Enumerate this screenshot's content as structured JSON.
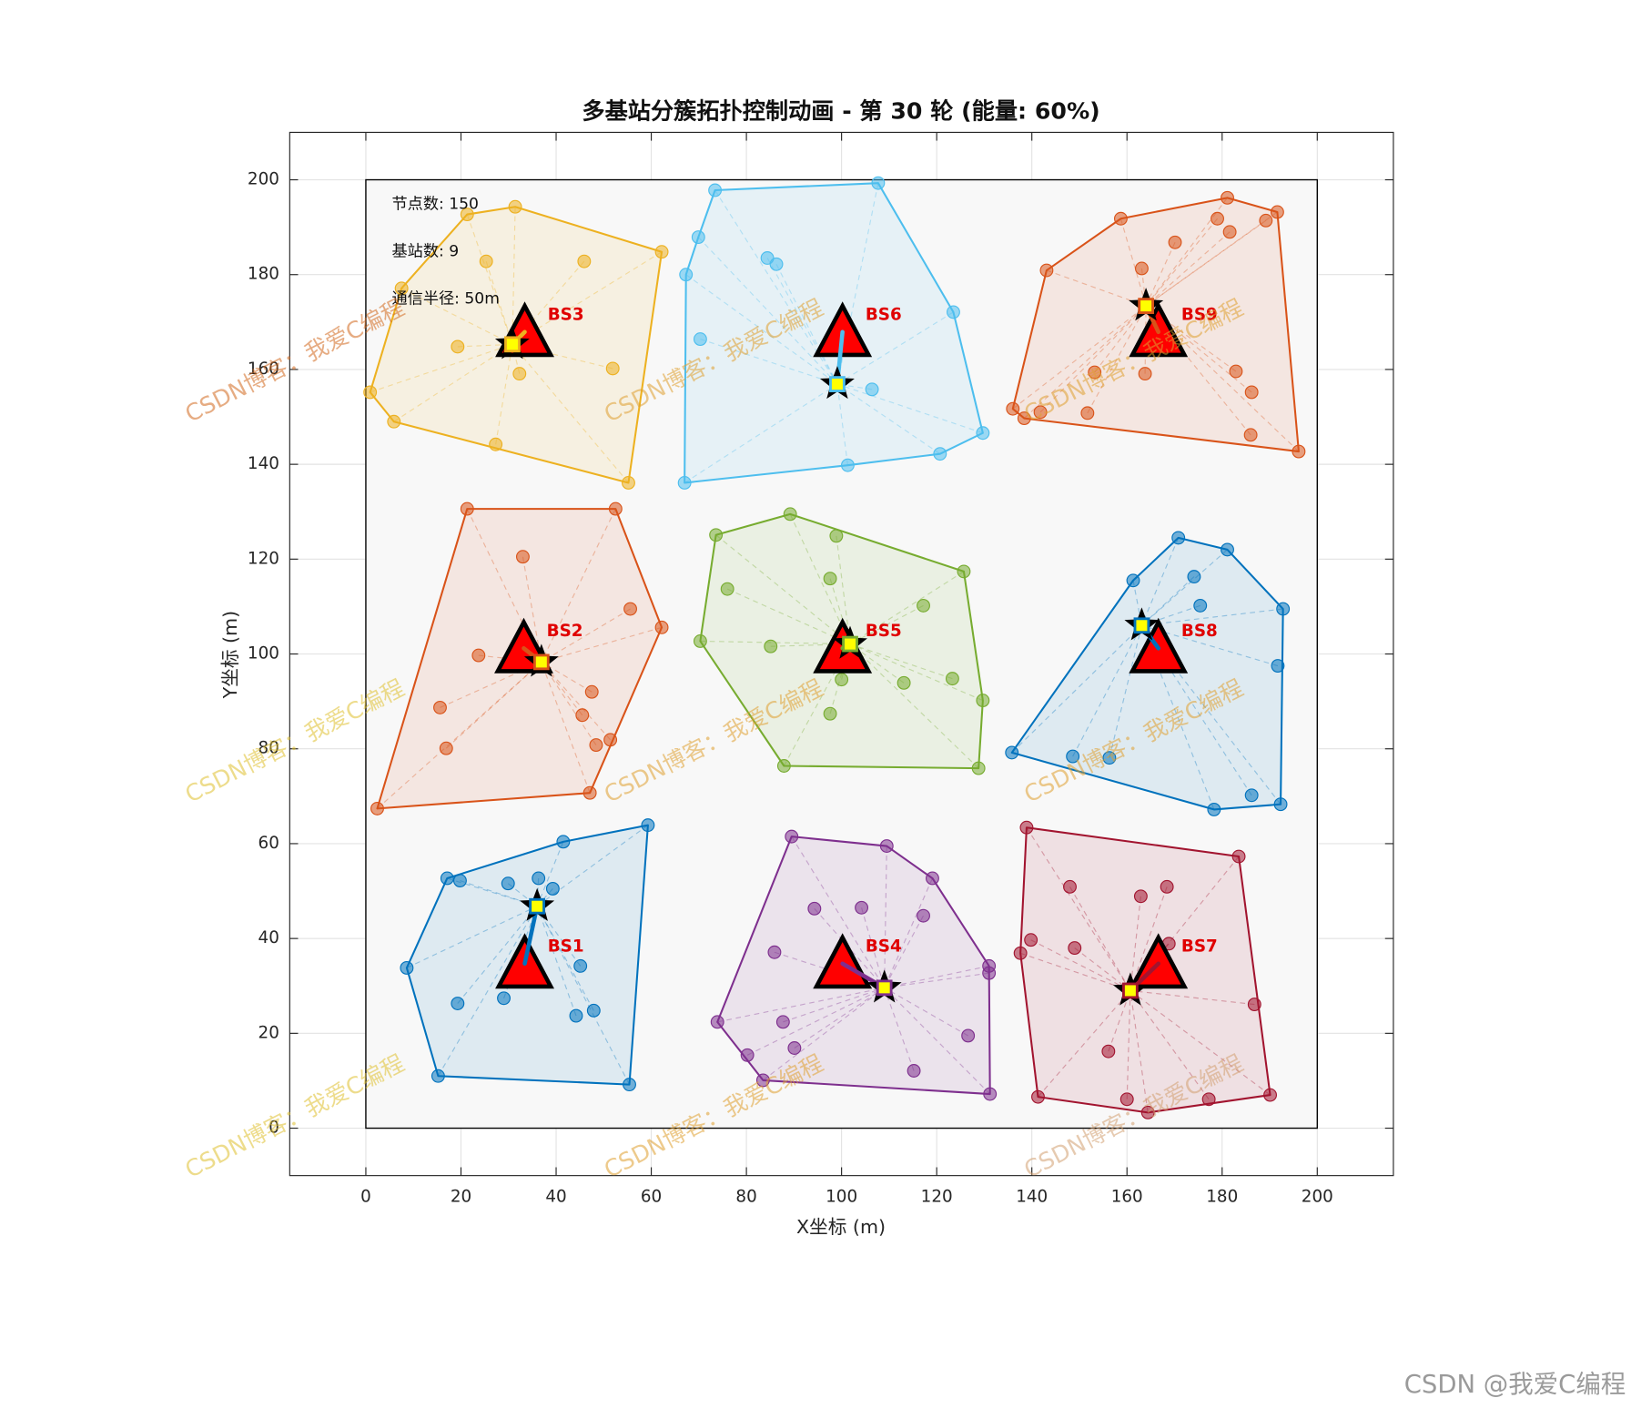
{
  "chart_data": {
    "type": "scatter",
    "title": "多基站分簇拓扑控制动画 - 第 30 轮 (能量: 60%)",
    "xlabel": "X坐标 (m)",
    "ylabel": "Y坐标 (m)",
    "xlim": [
      -16,
      216
    ],
    "ylim": [
      -10,
      210
    ],
    "xticks": [
      0,
      20,
      40,
      60,
      80,
      100,
      120,
      140,
      160,
      180,
      200
    ],
    "yticks": [
      0,
      20,
      40,
      60,
      80,
      100,
      120,
      140,
      160,
      180,
      200
    ],
    "grid": true,
    "area_x": [
      0,
      200
    ],
    "area_y": [
      0,
      200
    ],
    "info_text": [
      "节点数: 150",
      "基站数: 9",
      "通信半径: 50m"
    ],
    "watermark": "CSDN博客：我爱C编程",
    "footer": "CSDN @我爱C编程",
    "series": [
      {
        "name": "BS1",
        "color": "#0072BD",
        "bs_x": 33.4,
        "bs_y": 34.7,
        "head_x": 36.0,
        "head_y": 46.8,
        "x": [
          59.3,
          41.5,
          17.1,
          19.8,
          29.9,
          36.3,
          39.3,
          8.6,
          45.1,
          19.3,
          29.0,
          47.9,
          44.2,
          15.2,
          55.4
        ],
        "y": [
          63.9,
          60.4,
          52.7,
          52.2,
          51.6,
          52.7,
          50.5,
          33.8,
          34.2,
          26.3,
          27.4,
          24.8,
          23.7,
          11.0,
          9.2
        ]
      },
      {
        "name": "BS2",
        "color": "#D95319",
        "bs_x": 33.2,
        "bs_y": 101.2,
        "head_x": 36.9,
        "head_y": 98.3,
        "x": [
          21.3,
          52.5,
          33.0,
          55.6,
          62.2,
          23.7,
          47.5,
          15.6,
          45.5,
          51.4,
          48.4,
          16.9,
          47.1,
          2.4
        ],
        "y": [
          130.6,
          130.6,
          120.5,
          109.5,
          105.6,
          99.7,
          92.0,
          88.7,
          87.1,
          81.9,
          80.8,
          80.1,
          70.7,
          67.4
        ]
      },
      {
        "name": "BS3",
        "color": "#EDB120",
        "bs_x": 33.4,
        "bs_y": 167.9,
        "head_x": 30.8,
        "head_y": 165.3,
        "x": [
          21.3,
          31.4,
          62.2,
          7.5,
          25.3,
          45.9,
          19.3,
          32.3,
          51.9,
          0.9,
          5.9,
          27.3,
          55.2
        ],
        "y": [
          192.7,
          194.3,
          184.8,
          177.1,
          182.8,
          182.8,
          164.8,
          159.1,
          160.2,
          155.2,
          149.0,
          144.2,
          136.1
        ]
      },
      {
        "name": "BS4",
        "color": "#7E2F8E",
        "bs_x": 100.2,
        "bs_y": 34.7,
        "head_x": 109.0,
        "head_y": 29.6,
        "x": [
          89.5,
          109.5,
          119.1,
          94.3,
          104.2,
          117.2,
          85.9,
          131.0,
          131.0,
          73.9,
          87.7,
          126.6,
          90.1,
          80.2,
          115.2,
          83.5,
          131.2
        ],
        "y": [
          61.5,
          59.5,
          52.7,
          46.3,
          46.5,
          44.8,
          37.1,
          34.2,
          32.7,
          22.4,
          22.4,
          19.5,
          16.9,
          15.4,
          12.1,
          10.1,
          7.2
        ]
      },
      {
        "name": "BS5",
        "color": "#77AC30",
        "bs_x": 100.2,
        "bs_y": 101.2,
        "head_x": 101.8,
        "head_y": 102.1,
        "x": [
          89.2,
          73.6,
          98.9,
          125.7,
          76.0,
          97.6,
          117.2,
          70.3,
          85.1,
          100.0,
          113.1,
          123.3,
          129.7,
          97.6,
          87.9,
          128.8
        ],
        "y": [
          129.5,
          125.1,
          124.9,
          117.4,
          113.7,
          115.9,
          110.2,
          102.7,
          101.6,
          94.6,
          93.9,
          94.8,
          90.2,
          87.4,
          76.4,
          75.9
        ]
      },
      {
        "name": "BS6",
        "color": "#4DBEEE",
        "bs_x": 100.2,
        "bs_y": 167.9,
        "head_x": 99.1,
        "head_y": 156.9,
        "x": [
          73.4,
          107.7,
          69.9,
          67.3,
          84.4,
          86.3,
          123.5,
          70.3,
          106.4,
          129.7,
          120.7,
          101.3,
          67.0
        ],
        "y": [
          197.8,
          199.3,
          187.9,
          180.0,
          183.5,
          182.2,
          172.1,
          166.4,
          155.8,
          146.6,
          142.2,
          139.8,
          136.1
        ]
      },
      {
        "name": "BS7",
        "color": "#A2142F",
        "bs_x": 166.6,
        "bs_y": 34.7,
        "head_x": 160.7,
        "head_y": 29.0,
        "x": [
          138.9,
          183.5,
          148.0,
          162.9,
          168.4,
          139.8,
          149.0,
          137.6,
          168.8,
          186.8,
          156.1,
          141.3,
          160.0,
          177.2,
          190.1,
          164.4
        ],
        "y": [
          63.4,
          57.3,
          50.9,
          48.9,
          50.9,
          39.7,
          38.0,
          36.9,
          38.9,
          26.1,
          16.2,
          6.6,
          6.1,
          6.1,
          7.0,
          3.3
        ]
      },
      {
        "name": "BS8",
        "color": "#0072BD",
        "bs_x": 166.6,
        "bs_y": 101.2,
        "head_x": 163.1,
        "head_y": 106.0,
        "x": [
          170.8,
          181.1,
          161.3,
          174.1,
          175.4,
          192.8,
          191.7,
          135.8,
          148.6,
          156.3,
          186.2,
          178.3,
          192.3
        ],
        "y": [
          124.5,
          122.0,
          115.5,
          116.3,
          110.2,
          109.5,
          97.5,
          79.2,
          78.4,
          78.1,
          70.2,
          67.2,
          68.3
        ]
      },
      {
        "name": "BS9",
        "color": "#D95319",
        "bs_x": 166.6,
        "bs_y": 167.9,
        "head_x": 164.0,
        "head_y": 173.4,
        "x": [
          181.1,
          191.6,
          158.7,
          179.0,
          181.6,
          189.2,
          170.1,
          143.1,
          163.1,
          163.8,
          153.2,
          182.9,
          186.2,
          141.8,
          136.0,
          138.4,
          151.7,
          186.0,
          196.1
        ],
        "y": [
          196.2,
          193.2,
          191.8,
          191.8,
          189.0,
          191.4,
          186.8,
          180.9,
          181.3,
          159.1,
          159.4,
          159.6,
          155.2,
          151.0,
          151.7,
          149.7,
          150.8,
          146.2,
          142.7
        ]
      }
    ]
  }
}
